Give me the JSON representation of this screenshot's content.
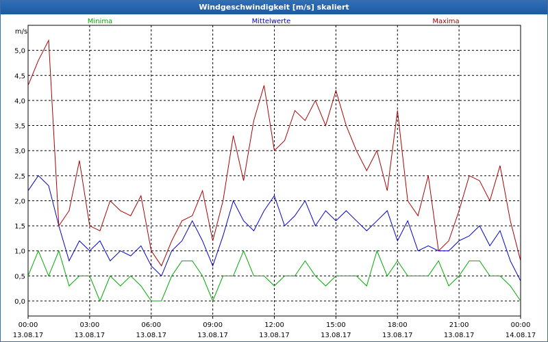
{
  "window": {
    "title": "Windgeschwindigkeit [m/s] skaliert"
  },
  "chart_data": {
    "type": "line",
    "title": "Windgeschwindigkeit [m/s] skaliert",
    "ylabel": "m/s",
    "ylim": [
      -0.3,
      5.5
    ],
    "yticks": [
      0,
      0.5,
      1.0,
      1.5,
      2.0,
      2.5,
      3.0,
      3.5,
      4.0,
      4.5,
      5.0
    ],
    "ytick_labels": [
      "0,0",
      "0,5",
      "1,0",
      "1,5",
      "2,0",
      "2,5",
      "3,0",
      "3,5",
      "4,0",
      "4,5",
      "5,0"
    ],
    "xlim_hours": [
      0,
      24
    ],
    "xticks": [
      {
        "hour": 0,
        "time": "00:00",
        "date": "13.08.17"
      },
      {
        "hour": 3,
        "time": "03:00",
        "date": "13.08.17"
      },
      {
        "hour": 6,
        "time": "06:00",
        "date": "13.08.17"
      },
      {
        "hour": 9,
        "time": "09:00",
        "date": "13.08.17"
      },
      {
        "hour": 12,
        "time": "12:00",
        "date": "13.08.17"
      },
      {
        "hour": 15,
        "time": "15:00",
        "date": "13.08.17"
      },
      {
        "hour": 18,
        "time": "18:00",
        "date": "13.08.17"
      },
      {
        "hour": 21,
        "time": "21:00",
        "date": "13.08.17"
      },
      {
        "hour": 24,
        "time": "00:00",
        "date": "14.08.17"
      }
    ],
    "grid": true,
    "legend_position": "top",
    "series": [
      {
        "name": "Minima",
        "color": "#00aa00",
        "x": [
          0,
          0.5,
          1,
          1.5,
          2,
          2.5,
          3,
          3.5,
          4,
          4.5,
          5,
          5.5,
          6,
          6.5,
          7,
          7.5,
          8,
          8.5,
          9,
          9.5,
          10,
          10.5,
          11,
          11.5,
          12,
          12.5,
          13,
          13.5,
          14,
          14.5,
          15,
          15.5,
          16,
          16.5,
          17,
          17.5,
          18,
          18.5,
          19,
          19.5,
          20,
          20.5,
          21,
          21.5,
          22,
          22.5,
          23,
          23.5,
          24
        ],
        "values": [
          0.5,
          1.0,
          0.5,
          1.0,
          0.3,
          0.5,
          0.5,
          0.0,
          0.5,
          0.3,
          0.5,
          0.3,
          0.0,
          0.0,
          0.5,
          0.8,
          0.8,
          0.5,
          0.0,
          0.5,
          0.5,
          1.0,
          0.5,
          0.5,
          0.3,
          0.5,
          0.5,
          0.8,
          0.5,
          0.3,
          0.5,
          0.5,
          0.5,
          0.3,
          1.0,
          0.5,
          0.8,
          0.5,
          0.5,
          0.5,
          0.8,
          0.3,
          0.5,
          0.8,
          0.8,
          0.5,
          0.5,
          0.3,
          0.0
        ]
      },
      {
        "name": "Mittelwerte",
        "color": "#0000cc",
        "x": [
          0,
          0.5,
          1,
          1.5,
          2,
          2.5,
          3,
          3.5,
          4,
          4.5,
          5,
          5.5,
          6,
          6.5,
          7,
          7.5,
          8,
          8.5,
          9,
          9.5,
          10,
          10.5,
          11,
          11.5,
          12,
          12.5,
          13,
          13.5,
          14,
          14.5,
          15,
          15.5,
          16,
          16.5,
          17,
          17.5,
          18,
          18.5,
          19,
          19.5,
          20,
          20.5,
          21,
          21.5,
          22,
          22.5,
          23,
          23.5,
          24
        ],
        "values": [
          2.2,
          2.5,
          2.3,
          1.5,
          0.8,
          1.2,
          1.0,
          1.2,
          0.8,
          1.0,
          0.9,
          1.1,
          0.7,
          0.5,
          1.0,
          1.2,
          1.6,
          1.2,
          0.7,
          1.3,
          2.0,
          1.6,
          1.4,
          1.8,
          2.1,
          1.5,
          1.7,
          2.0,
          1.5,
          1.8,
          1.6,
          1.8,
          1.6,
          1.4,
          1.6,
          1.8,
          1.2,
          1.6,
          1.0,
          1.1,
          1.0,
          1.0,
          1.2,
          1.3,
          1.5,
          1.1,
          1.4,
          0.8,
          0.4
        ]
      },
      {
        "name": "Maxima",
        "color": "#aa0000",
        "x": [
          0,
          0.5,
          1,
          1.5,
          2,
          2.5,
          3,
          3.5,
          4,
          4.5,
          5,
          5.5,
          6,
          6.5,
          7,
          7.5,
          8,
          8.5,
          9,
          9.5,
          10,
          10.5,
          11,
          11.5,
          12,
          12.5,
          13,
          13.5,
          14,
          14.5,
          15,
          15.5,
          16,
          16.5,
          17,
          17.5,
          18,
          18.5,
          19,
          19.5,
          20,
          20.5,
          21,
          21.5,
          22,
          22.5,
          23,
          23.5,
          24
        ],
        "values": [
          4.3,
          4.8,
          5.2,
          1.5,
          1.8,
          2.8,
          1.5,
          1.4,
          2.0,
          1.8,
          1.7,
          2.1,
          1.0,
          0.7,
          1.2,
          1.6,
          1.7,
          2.2,
          1.2,
          2.0,
          3.3,
          2.4,
          3.6,
          4.3,
          3.0,
          3.2,
          3.8,
          3.6,
          4.0,
          3.5,
          4.2,
          3.5,
          3.0,
          2.6,
          3.0,
          2.2,
          3.8,
          2.0,
          1.7,
          2.5,
          1.0,
          1.2,
          1.8,
          2.5,
          2.4,
          2.0,
          2.7,
          1.6,
          0.8
        ]
      }
    ]
  }
}
